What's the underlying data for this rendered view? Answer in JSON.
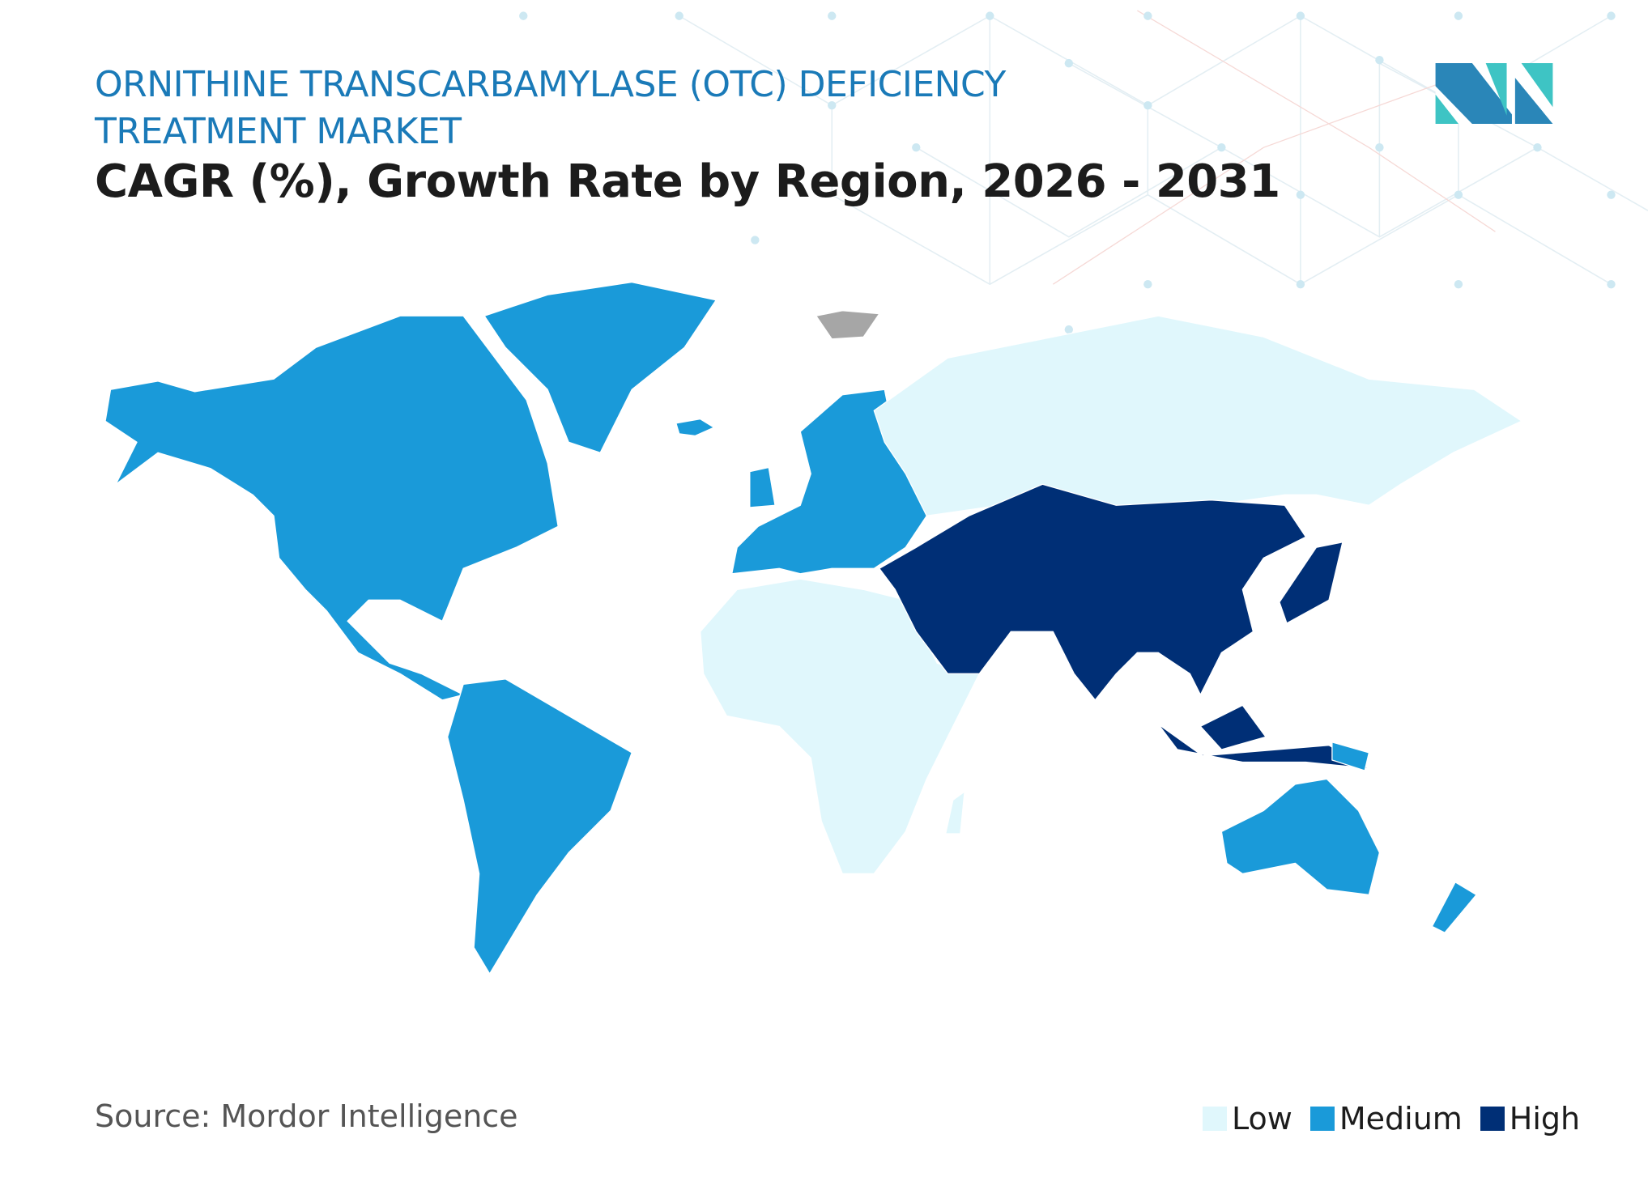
{
  "title_line1": "ORNITHINE TRANSCARBAMYLASE (OTC) DEFICIENCY",
  "title_line2": "TREATMENT MARKET",
  "subtitle": "CAGR (%), Growth Rate by Region, 2026 - 2031",
  "source": "Source: Mordor Intelligence",
  "logo_text": "MI",
  "colors": {
    "low": "#e0f7fc",
    "medium": "#1a9ad9",
    "high": "#002f76",
    "no_data": "#a6a6a6",
    "title": "#1a7ab8"
  },
  "legend": [
    {
      "label": "Low",
      "color": "#e0f7fc"
    },
    {
      "label": "Medium",
      "color": "#1a9ad9"
    },
    {
      "label": "High",
      "color": "#002f76"
    }
  ],
  "chart_data": {
    "type": "choropleth-map",
    "title": "CAGR (%), Growth Rate by Region, 2026 - 2031",
    "legend_position": "bottom-right",
    "regions": [
      {
        "region": "North America",
        "level": "Medium"
      },
      {
        "region": "South America",
        "level": "Medium"
      },
      {
        "region": "Europe",
        "level": "Medium"
      },
      {
        "region": "Russia",
        "level": "Low"
      },
      {
        "region": "Africa",
        "level": "Low"
      },
      {
        "region": "Middle East",
        "level": "High"
      },
      {
        "region": "Asia",
        "level": "High"
      },
      {
        "region": "Australia and New Zealand",
        "level": "Medium"
      }
    ]
  }
}
